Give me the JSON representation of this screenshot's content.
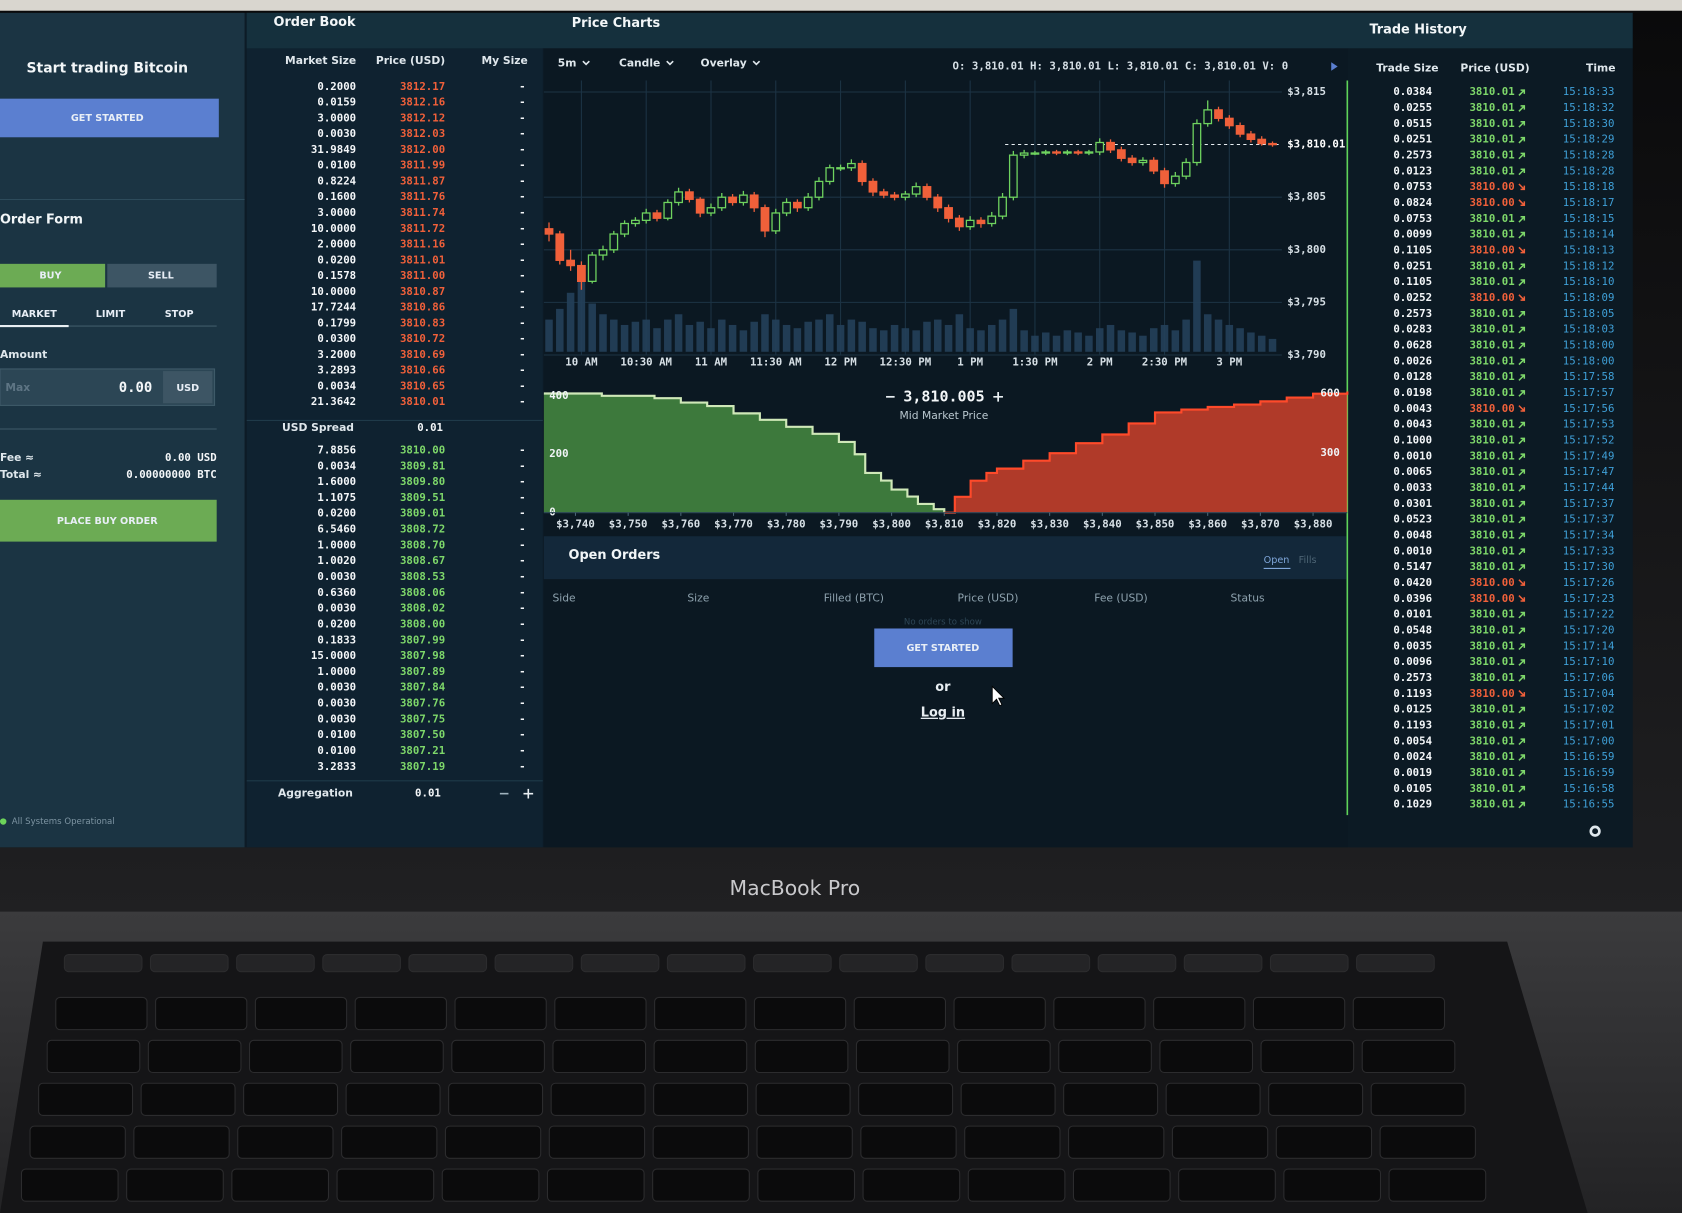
{
  "left_panel": {
    "title": "Start trading Bitcoin",
    "get_started": "GET STARTED",
    "order_form": "Order Form",
    "tabs": [
      "BUY",
      "SELL"
    ],
    "order_types": [
      "MARKET",
      "LIMIT",
      "STOP"
    ],
    "amount_label": "Amount",
    "amount_placeholder": "Max",
    "amount_value": "0.00",
    "amount_unit": "USD",
    "fee_label": "Fee ≈",
    "fee_value": "0.00 USD",
    "total_label": "Total ≈",
    "total_value": "0.00000000 BTC",
    "place_order": "PLACE BUY ORDER",
    "status": "All Systems Operational"
  },
  "order_book": {
    "title": "Order Book",
    "columns": [
      "Market Size",
      "Price (USD)",
      "My Size"
    ],
    "my_size": "-",
    "asks": [
      [
        "0.2000",
        "3812.17"
      ],
      [
        "0.0159",
        "3812.16"
      ],
      [
        "3.0000",
        "3812.12"
      ],
      [
        "0.0030",
        "3812.03"
      ],
      [
        "31.9849",
        "3812.00"
      ],
      [
        "0.0100",
        "3811.99"
      ],
      [
        "0.8224",
        "3811.87"
      ],
      [
        "0.1600",
        "3811.76"
      ],
      [
        "3.0000",
        "3811.74"
      ],
      [
        "10.0000",
        "3811.72"
      ],
      [
        "2.0000",
        "3811.16"
      ],
      [
        "0.0200",
        "3811.01"
      ],
      [
        "0.1578",
        "3811.00"
      ],
      [
        "10.0000",
        "3810.87"
      ],
      [
        "17.7244",
        "3810.86"
      ],
      [
        "0.1799",
        "3810.83"
      ],
      [
        "0.0300",
        "3810.72"
      ],
      [
        "3.2000",
        "3810.69"
      ],
      [
        "3.2893",
        "3810.66"
      ],
      [
        "0.0034",
        "3810.65"
      ],
      [
        "21.3642",
        "3810.01"
      ]
    ],
    "spread_label": "USD Spread",
    "spread": "0.01",
    "bids": [
      [
        "7.8856",
        "3810.00"
      ],
      [
        "0.0034",
        "3809.81"
      ],
      [
        "1.6000",
        "3809.80"
      ],
      [
        "1.1075",
        "3809.51"
      ],
      [
        "0.0200",
        "3809.01"
      ],
      [
        "6.5460",
        "3808.72"
      ],
      [
        "1.0000",
        "3808.70"
      ],
      [
        "1.0020",
        "3808.67"
      ],
      [
        "0.0030",
        "3808.53"
      ],
      [
        "0.6360",
        "3808.06"
      ],
      [
        "0.0030",
        "3808.02"
      ],
      [
        "0.0200",
        "3808.00"
      ],
      [
        "0.1833",
        "3807.99"
      ],
      [
        "15.0000",
        "3807.98"
      ],
      [
        "1.0000",
        "3807.89"
      ],
      [
        "0.0030",
        "3807.84"
      ],
      [
        "0.0030",
        "3807.76"
      ],
      [
        "0.0030",
        "3807.75"
      ],
      [
        "0.0100",
        "3807.50"
      ],
      [
        "0.0100",
        "3807.21"
      ],
      [
        "3.2833",
        "3807.19"
      ]
    ],
    "aggregation_label": "Aggregation",
    "aggregation": "0.01"
  },
  "price_chart": {
    "type": "candlestick",
    "title": "Price Charts",
    "controls": [
      "5m",
      "Candle",
      "Overlay"
    ],
    "ohlc_readout": "O: 3,810.01  H: 3,810.01  L: 3,810.01  C: 3,810.01  V: 0",
    "up_color": "#6fd35f",
    "down_color": "#f0603a",
    "x": [
      "09:45",
      "09:50",
      "09:55",
      "10:00",
      "10:05",
      "10:10",
      "10:15",
      "10:20",
      "10:25",
      "10:30",
      "10:35",
      "10:40",
      "10:45",
      "10:50",
      "10:55",
      "11:00",
      "11:05",
      "11:10",
      "11:15",
      "11:20",
      "11:25",
      "11:30",
      "11:35",
      "11:40",
      "11:45",
      "11:50",
      "11:55",
      "12:00",
      "12:05",
      "12:10",
      "12:15",
      "12:20",
      "12:25",
      "12:30",
      "12:35",
      "12:40",
      "12:45",
      "12:50",
      "12:55",
      "13:00",
      "13:05",
      "13:10",
      "13:15",
      "13:20",
      "13:25",
      "13:30",
      "13:35",
      "13:40",
      "13:45",
      "13:50",
      "13:55",
      "14:00",
      "14:05",
      "14:10",
      "14:15",
      "14:20",
      "14:25",
      "14:30",
      "14:35",
      "14:40",
      "14:45",
      "14:50",
      "14:55",
      "15:00",
      "15:05",
      "15:10",
      "15:15",
      "15:20"
    ],
    "open": [
      3802.0,
      3801.5,
      3799.0,
      3798.5,
      3797.0,
      3799.5,
      3800.0,
      3801.5,
      3802.5,
      3802.8,
      3803.5,
      3803.0,
      3804.5,
      3805.5,
      3804.8,
      3803.5,
      3804.0,
      3805.0,
      3804.5,
      3805.2,
      3804.0,
      3801.8,
      3803.5,
      3804.5,
      3804.0,
      3805.0,
      3806.5,
      3807.8,
      3807.8,
      3808.2,
      3806.5,
      3805.5,
      3805.2,
      3805.0,
      3805.3,
      3806.0,
      3805.0,
      3804.0,
      3803.0,
      3802.2,
      3802.8,
      3802.5,
      3803.2,
      3805.0,
      3809.0,
      3809.2,
      3809.2,
      3809.3,
      3809.2,
      3809.3,
      3809.2,
      3809.3,
      3810.2,
      3809.5,
      3808.7,
      3808.3,
      3808.5,
      3807.5,
      3806.3,
      3807.0,
      3808.3,
      3812.0,
      3813.3,
      3812.5,
      3811.8,
      3811.0,
      3810.5,
      3810.1
    ],
    "high": [
      3802.6,
      3801.8,
      3800.0,
      3798.9,
      3799.8,
      3800.4,
      3801.8,
      3802.8,
      3803.1,
      3803.9,
      3803.8,
      3804.8,
      3805.9,
      3805.8,
      3805.0,
      3804.4,
      3805.4,
      3805.3,
      3805.6,
      3805.5,
      3804.3,
      3803.9,
      3804.9,
      3804.8,
      3805.4,
      3806.9,
      3808.1,
      3808.1,
      3808.6,
      3808.5,
      3806.8,
      3805.8,
      3805.5,
      3805.6,
      3806.4,
      3806.3,
      3805.3,
      3804.3,
      3803.3,
      3803.2,
      3803.1,
      3803.6,
      3805.4,
      3809.4,
      3809.5,
      3809.4,
      3809.5,
      3809.5,
      3809.5,
      3809.5,
      3809.5,
      3810.6,
      3810.5,
      3809.8,
      3809.0,
      3808.8,
      3808.8,
      3807.8,
      3807.4,
      3808.7,
      3812.4,
      3814.2,
      3813.6,
      3812.8,
      3812.1,
      3811.3,
      3810.8,
      3810.3
    ],
    "low": [
      3800.8,
      3798.6,
      3798.0,
      3796.2,
      3796.8,
      3799.0,
      3799.7,
      3801.2,
      3802.2,
      3802.5,
      3802.7,
      3802.8,
      3804.2,
      3804.5,
      3803.1,
      3803.2,
      3803.7,
      3804.2,
      3804.2,
      3803.6,
      3801.2,
      3801.5,
      3803.2,
      3803.6,
      3803.7,
      3804.7,
      3806.2,
      3807.5,
      3807.5,
      3806.1,
      3805.1,
      3804.9,
      3804.7,
      3804.7,
      3805.0,
      3804.7,
      3803.6,
      3802.6,
      3801.8,
      3801.9,
      3802.1,
      3802.2,
      3802.9,
      3804.7,
      3808.7,
      3809.0,
      3809.0,
      3809.0,
      3809.0,
      3809.0,
      3809.0,
      3809.0,
      3809.2,
      3808.4,
      3808.0,
      3808.0,
      3807.2,
      3805.9,
      3806.0,
      3806.7,
      3808.0,
      3811.7,
      3812.2,
      3811.5,
      3810.7,
      3810.2,
      3809.9,
      3809.8
    ],
    "close": [
      3801.5,
      3799.0,
      3798.5,
      3797.0,
      3799.5,
      3800.0,
      3801.5,
      3802.5,
      3802.8,
      3803.5,
      3803.0,
      3804.5,
      3805.5,
      3804.8,
      3803.5,
      3804.0,
      3805.0,
      3804.5,
      3805.2,
      3804.0,
      3801.8,
      3803.5,
      3804.5,
      3804.0,
      3805.0,
      3806.5,
      3807.8,
      3807.8,
      3808.2,
      3806.5,
      3805.5,
      3805.2,
      3805.0,
      3805.3,
      3806.0,
      3805.0,
      3804.0,
      3803.0,
      3802.2,
      3802.8,
      3802.5,
      3803.2,
      3805.0,
      3809.0,
      3809.2,
      3809.2,
      3809.3,
      3809.2,
      3809.3,
      3809.2,
      3809.3,
      3810.2,
      3809.5,
      3808.7,
      3808.3,
      3808.5,
      3807.5,
      3806.3,
      3807.0,
      3808.3,
      3812.0,
      3813.3,
      3812.5,
      3811.8,
      3811.0,
      3810.5,
      3810.1,
      3810.0
    ],
    "volume": [
      30,
      40,
      55,
      70,
      45,
      35,
      30,
      25,
      28,
      30,
      22,
      30,
      35,
      25,
      28,
      22,
      30,
      25,
      20,
      28,
      35,
      30,
      25,
      22,
      28,
      30,
      35,
      25,
      30,
      28,
      22,
      20,
      25,
      22,
      20,
      28,
      30,
      25,
      35,
      22,
      20,
      25,
      30,
      40,
      20,
      15,
      18,
      15,
      20,
      18,
      15,
      22,
      25,
      20,
      18,
      15,
      22,
      25,
      20,
      30,
      85,
      35,
      30,
      25,
      22,
      18,
      15,
      12
    ],
    "ylim": [
      3790,
      3816.1
    ],
    "yticks": [
      {
        "value": 3815,
        "label": "$3,815"
      },
      {
        "value": 3805,
        "label": "$3,805"
      },
      {
        "value": 3800,
        "label": "$3,800"
      },
      {
        "value": 3795,
        "label": "$3,795"
      },
      {
        "value": 3790,
        "label": "$3,790"
      }
    ],
    "last_price": {
      "value": 3810.01,
      "label": "$3,810.01"
    },
    "xticks": [
      {
        "value": "10:00",
        "label": "10 AM"
      },
      {
        "value": "10:30",
        "label": "10:30 AM"
      },
      {
        "value": "11:00",
        "label": "11 AM"
      },
      {
        "value": "11:30",
        "label": "11:30 AM"
      },
      {
        "value": "12:00",
        "label": "12 PM"
      },
      {
        "value": "12:30",
        "label": "12:30 PM"
      },
      {
        "value": "13:00",
        "label": "1 PM"
      },
      {
        "value": "13:30",
        "label": "1:30 PM"
      },
      {
        "value": "14:00",
        "label": "2 PM"
      },
      {
        "value": "14:30",
        "label": "2:30 PM"
      },
      {
        "value": "15:00",
        "label": "3 PM"
      }
    ]
  },
  "depth_chart": {
    "type": "area",
    "mid_price": "3,810.005",
    "mid_label": "Mid Market Price",
    "xlim": [
      3734,
      3886.5
    ],
    "ylim": [
      0,
      415
    ],
    "y2lim": [
      0,
      611
    ],
    "yticks": [
      0,
      200,
      400
    ],
    "y2ticks": [
      300,
      600
    ],
    "xticks": [
      {
        "value": 3740,
        "label": "$3,740"
      },
      {
        "value": 3750,
        "label": "$3,750"
      },
      {
        "value": 3760,
        "label": "$3,760"
      },
      {
        "value": 3770,
        "label": "$3,770"
      },
      {
        "value": 3780,
        "label": "$3,780"
      },
      {
        "value": 3790,
        "label": "$3,790"
      },
      {
        "value": 3800,
        "label": "$3,800"
      },
      {
        "value": 3810,
        "label": "$3,810"
      },
      {
        "value": 3820,
        "label": "$3,820"
      },
      {
        "value": 3830,
        "label": "$3,830"
      },
      {
        "value": 3840,
        "label": "$3,840"
      },
      {
        "value": 3850,
        "label": "$3,850"
      },
      {
        "value": 3860,
        "label": "$3,860"
      },
      {
        "value": 3870,
        "label": "$3,870"
      },
      {
        "value": 3880,
        "label": "$3,880"
      }
    ],
    "series": [
      {
        "color": "#4f9a45",
        "x": [
          3734,
          3745,
          3755,
          3760,
          3765,
          3770,
          3775,
          3780,
          3785,
          3790,
          3793,
          3795,
          3798,
          3800,
          3803,
          3805,
          3808,
          3810
        ],
        "values": [
          408,
          400,
          392,
          377,
          365,
          340,
          318,
          294,
          270,
          242,
          200,
          136,
          110,
          79,
          55,
          30,
          12,
          0
        ]
      },
      {
        "color": "#e8452c",
        "axis": "y2",
        "x": [
          3810,
          3812,
          3815,
          3818,
          3820,
          3825,
          3830,
          3835,
          3840,
          3845,
          3850,
          3855,
          3860,
          3865,
          3870,
          3875,
          3880,
          3886.5
        ],
        "values": [
          0,
          80,
          161,
          200,
          222,
          262,
          300,
          350,
          394,
          450,
          505,
          520,
          533,
          545,
          561,
          580,
          600,
          611
        ]
      }
    ]
  },
  "open_orders": {
    "title": "Open Orders",
    "tabs": [
      "Open",
      "Fills"
    ],
    "columns": [
      "Side",
      "Size",
      "Filled (BTC)",
      "Price (USD)",
      "Fee (USD)",
      "Status"
    ],
    "empty": "No orders to show",
    "get_started": "GET STARTED",
    "or": "or",
    "login": "Log in"
  },
  "trade_history": {
    "title": "Trade History",
    "columns": [
      "Trade Size",
      "Price (USD)",
      "Time"
    ],
    "up_color": "#7ed86a",
    "down_color": "#f0603a",
    "rows": [
      {
        "size": "0.0384",
        "price": "3810.01",
        "direction": "up",
        "time": "15:18:33"
      },
      {
        "size": "0.0255",
        "price": "3810.01",
        "direction": "up",
        "time": "15:18:32"
      },
      {
        "size": "0.0515",
        "price": "3810.01",
        "direction": "up",
        "time": "15:18:30"
      },
      {
        "size": "0.0251",
        "price": "3810.01",
        "direction": "up",
        "time": "15:18:29"
      },
      {
        "size": "0.2573",
        "price": "3810.01",
        "direction": "up",
        "time": "15:18:28"
      },
      {
        "size": "0.0123",
        "price": "3810.01",
        "direction": "up",
        "time": "15:18:28"
      },
      {
        "size": "0.0753",
        "price": "3810.00",
        "direction": "down",
        "time": "15:18:18"
      },
      {
        "size": "0.0824",
        "price": "3810.00",
        "direction": "down",
        "time": "15:18:17"
      },
      {
        "size": "0.0753",
        "price": "3810.01",
        "direction": "up",
        "time": "15:18:15"
      },
      {
        "size": "0.0099",
        "price": "3810.01",
        "direction": "up",
        "time": "15:18:14"
      },
      {
        "size": "0.1105",
        "price": "3810.00",
        "direction": "down",
        "time": "15:18:13"
      },
      {
        "size": "0.0251",
        "price": "3810.01",
        "direction": "up",
        "time": "15:18:12"
      },
      {
        "size": "0.1105",
        "price": "3810.01",
        "direction": "up",
        "time": "15:18:10"
      },
      {
        "size": "0.0252",
        "price": "3810.00",
        "direction": "down",
        "time": "15:18:09"
      },
      {
        "size": "0.2573",
        "price": "3810.01",
        "direction": "up",
        "time": "15:18:05"
      },
      {
        "size": "0.0283",
        "price": "3810.01",
        "direction": "up",
        "time": "15:18:03"
      },
      {
        "size": "0.0628",
        "price": "3810.01",
        "direction": "up",
        "time": "15:18:00"
      },
      {
        "size": "0.0026",
        "price": "3810.01",
        "direction": "up",
        "time": "15:18:00"
      },
      {
        "size": "0.0128",
        "price": "3810.01",
        "direction": "up",
        "time": "15:17:58"
      },
      {
        "size": "0.0198",
        "price": "3810.01",
        "direction": "up",
        "time": "15:17:57"
      },
      {
        "size": "0.0043",
        "price": "3810.00",
        "direction": "down",
        "time": "15:17:56"
      },
      {
        "size": "0.0043",
        "price": "3810.01",
        "direction": "up",
        "time": "15:17:53"
      },
      {
        "size": "0.1000",
        "price": "3810.01",
        "direction": "up",
        "time": "15:17:52"
      },
      {
        "size": "0.0010",
        "price": "3810.01",
        "direction": "up",
        "time": "15:17:49"
      },
      {
        "size": "0.0065",
        "price": "3810.01",
        "direction": "up",
        "time": "15:17:47"
      },
      {
        "size": "0.0033",
        "price": "3810.01",
        "direction": "up",
        "time": "15:17:44"
      },
      {
        "size": "0.0301",
        "price": "3810.01",
        "direction": "up",
        "time": "15:17:37"
      },
      {
        "size": "0.0523",
        "price": "3810.01",
        "direction": "up",
        "time": "15:17:37"
      },
      {
        "size": "0.0048",
        "price": "3810.01",
        "direction": "up",
        "time": "15:17:34"
      },
      {
        "size": "0.0010",
        "price": "3810.01",
        "direction": "up",
        "time": "15:17:33"
      },
      {
        "size": "0.5147",
        "price": "3810.01",
        "direction": "up",
        "time": "15:17:30"
      },
      {
        "size": "0.0420",
        "price": "3810.00",
        "direction": "down",
        "time": "15:17:26"
      },
      {
        "size": "0.0396",
        "price": "3810.00",
        "direction": "down",
        "time": "15:17:23"
      },
      {
        "size": "0.0101",
        "price": "3810.01",
        "direction": "up",
        "time": "15:17:22"
      },
      {
        "size": "0.0548",
        "price": "3810.01",
        "direction": "up",
        "time": "15:17:20"
      },
      {
        "size": "0.0035",
        "price": "3810.01",
        "direction": "up",
        "time": "15:17:14"
      },
      {
        "size": "0.0096",
        "price": "3810.01",
        "direction": "up",
        "time": "15:17:10"
      },
      {
        "size": "0.2573",
        "price": "3810.01",
        "direction": "up",
        "time": "15:17:06"
      },
      {
        "size": "0.1193",
        "price": "3810.00",
        "direction": "down",
        "time": "15:17:04"
      },
      {
        "size": "0.0125",
        "price": "3810.01",
        "direction": "up",
        "time": "15:17:02"
      },
      {
        "size": "0.1193",
        "price": "3810.01",
        "direction": "up",
        "time": "15:17:01"
      },
      {
        "size": "0.0054",
        "price": "3810.01",
        "direction": "up",
        "time": "15:17:00"
      },
      {
        "size": "0.0024",
        "price": "3810.01",
        "direction": "up",
        "time": "15:16:59"
      },
      {
        "size": "0.0019",
        "price": "3810.01",
        "direction": "up",
        "time": "15:16:59"
      },
      {
        "size": "0.0105",
        "price": "3810.01",
        "direction": "up",
        "time": "15:16:58"
      },
      {
        "size": "0.1029",
        "price": "3810.01",
        "direction": "up",
        "time": "15:16:55"
      }
    ]
  },
  "laptop": {
    "brand": "MacBook Pro"
  }
}
